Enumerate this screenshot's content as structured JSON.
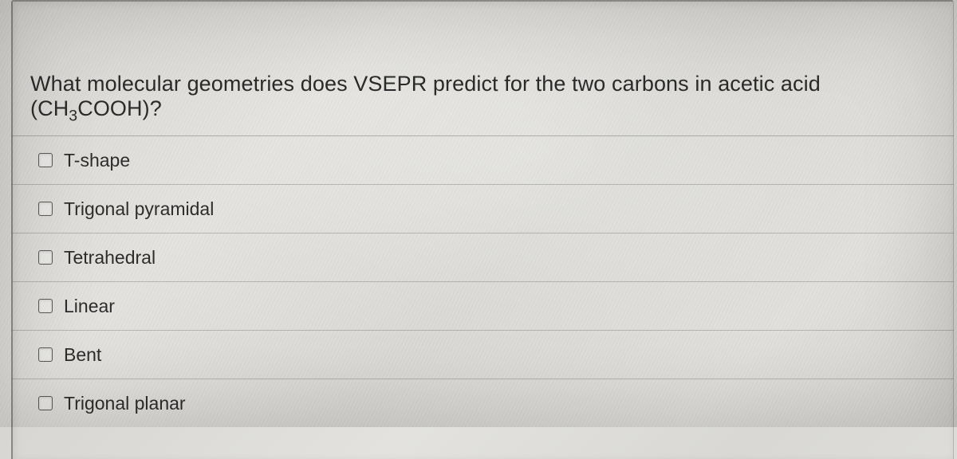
{
  "question": {
    "text_pre": "What molecular geometries does VSEPR predict for the two carbons in acetic acid (CH",
    "sub": "3",
    "text_post": "COOH)?"
  },
  "options": [
    {
      "label": "T-shape",
      "checked": false
    },
    {
      "label": "Trigonal pyramidal",
      "checked": false
    },
    {
      "label": "Tetrahedral",
      "checked": false
    },
    {
      "label": "Linear",
      "checked": false
    },
    {
      "label": "Bent",
      "checked": false
    },
    {
      "label": "Trigonal planar",
      "checked": false
    }
  ],
  "colors": {
    "text": "#2b2b2b",
    "border": "#6a6a68",
    "checkbox_border": "#5a5a5a",
    "background_light": "#e3e2de",
    "background_dark": "#d6d5d1"
  }
}
